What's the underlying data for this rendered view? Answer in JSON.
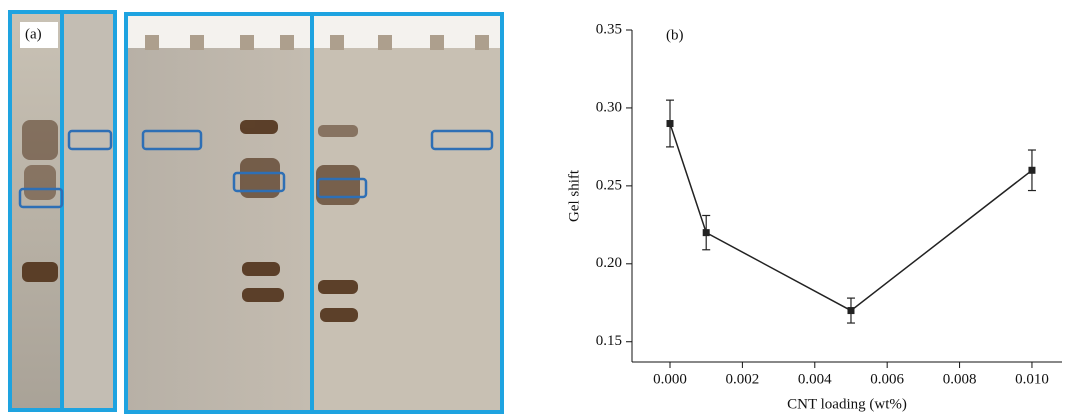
{
  "chart_data": {
    "type": "line",
    "panel_a_label": "(a)",
    "panel_b_label": "(b)",
    "x_label": "CNT loading (wt%)",
    "y_label": "Gel shift",
    "x": [
      0,
      0.001,
      0.005,
      0.01
    ],
    "values": [
      0.29,
      0.22,
      0.17,
      0.26
    ],
    "errors": [
      0.015,
      0.011,
      0.008,
      0.013
    ],
    "color": "#222222",
    "xlim": [
      -0.00105,
      0.01083
    ],
    "xticks": [
      {
        "value": 0,
        "label": "0.000"
      },
      {
        "value": 0.002,
        "label": "0.002"
      },
      {
        "value": 0.004,
        "label": "0.004"
      },
      {
        "value": 0.006,
        "label": "0.006"
      },
      {
        "value": 0.008,
        "label": "0.008"
      },
      {
        "value": 0.01,
        "label": "0.010"
      }
    ],
    "ylim": [
      0.137,
      0.35
    ],
    "yticks": [
      0.15,
      {
        "value": 0.2,
        "label": "0.20"
      },
      0.25,
      {
        "value": 0.3,
        "label": "0.30"
      },
      0.35
    ]
  }
}
